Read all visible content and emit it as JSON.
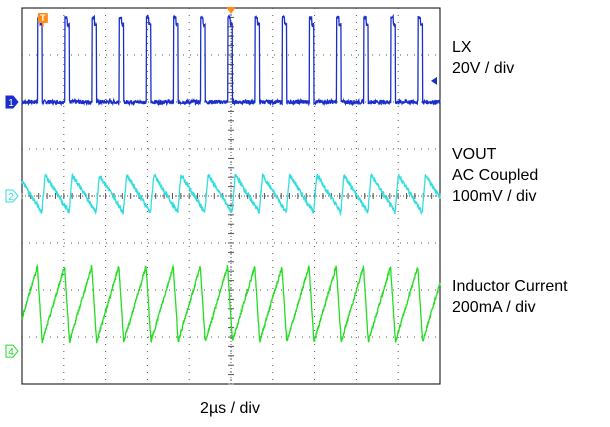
{
  "chart_data": {
    "type": "line",
    "title": "",
    "xlabel": "2µs / div",
    "ylabel": "",
    "grid": true,
    "grid_divisions": {
      "horizontal": 10,
      "vertical": 8
    },
    "xlim": [
      0,
      20
    ],
    "x_unit": "µs",
    "ylim_div": [
      -4,
      4
    ],
    "trigger_marker": "T",
    "series": [
      {
        "id": "lx",
        "channel": "1",
        "color": "#1a2ecc",
        "name_lines": [
          "LX",
          "20V / div"
        ],
        "shape": "pulse",
        "period_us": 1.3,
        "pulse_width_us": 0.22,
        "first_edge_us": 0.75,
        "baseline_div": 2.0,
        "peak_div": 3.8
      },
      {
        "id": "vout",
        "channel": "2",
        "color": "#33dddd",
        "name_lines": [
          "VOUT",
          "AC Coupled",
          "100mV / div"
        ],
        "shape": "sawtooth-falling",
        "period_us": 1.3,
        "phase_us": 0.95,
        "center_div": 0.0,
        "high_div": 0.45,
        "low_div": -0.35
      },
      {
        "id": "inductor",
        "channel": "4",
        "color": "#22dd22",
        "name_lines": [
          "Inductor Current",
          "200mA / div"
        ],
        "shape": "sawtooth-rising",
        "period_us": 1.3,
        "phase_us": 0.97,
        "low_div": -3.1,
        "high_div": -1.5
      }
    ]
  }
}
